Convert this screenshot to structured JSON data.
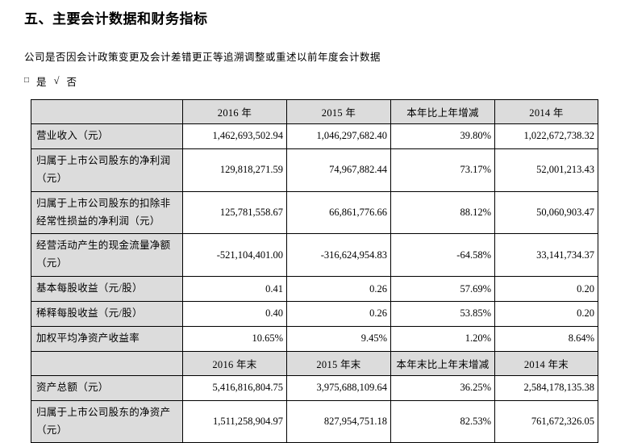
{
  "page": {
    "title": "五、主要会计数据和财务指标",
    "question": "公司是否因会计政策变更及会计差错更正等追溯调整或重述以前年度会计数据",
    "options": {
      "box": "□",
      "yes": "是",
      "check": "√",
      "no": "否"
    }
  },
  "table": {
    "colors": {
      "header_bg": "#dcdcdc",
      "border": "#000000"
    },
    "header1": [
      "",
      "2016 年",
      "2015 年",
      "本年比上年增减",
      "2014 年"
    ],
    "rows1": [
      {
        "label": "营业收入（元）",
        "values": [
          "1,462,693,502.94",
          "1,046,297,682.40",
          "39.80%",
          "1,022,672,738.32"
        ]
      },
      {
        "label": "归属于上市公司股东的净利润（元）",
        "values": [
          "129,818,271.59",
          "74,967,882.44",
          "73.17%",
          "52,001,213.43"
        ]
      },
      {
        "label": "归属于上市公司股东的扣除非经常性损益的净利润（元）",
        "values": [
          "125,781,558.67",
          "66,861,776.66",
          "88.12%",
          "50,060,903.47"
        ]
      },
      {
        "label": "经营活动产生的现金流量净额（元）",
        "values": [
          "-521,104,401.00",
          "-316,624,954.83",
          "-64.58%",
          "33,141,734.37"
        ]
      },
      {
        "label": "基本每股收益（元/股）",
        "values": [
          "0.41",
          "0.26",
          "57.69%",
          "0.20"
        ]
      },
      {
        "label": "稀释每股收益（元/股）",
        "values": [
          "0.40",
          "0.26",
          "53.85%",
          "0.20"
        ]
      },
      {
        "label": "加权平均净资产收益率",
        "values": [
          "10.65%",
          "9.45%",
          "1.20%",
          "8.64%"
        ]
      }
    ],
    "header2": [
      "",
      "2016 年末",
      "2015 年末",
      "本年末比上年末增减",
      "2014 年末"
    ],
    "rows2": [
      {
        "label": "资产总额（元）",
        "values": [
          "5,416,816,804.75",
          "3,975,688,109.64",
          "36.25%",
          "2,584,178,135.38"
        ]
      },
      {
        "label": "归属于上市公司股东的净资产（元）",
        "values": [
          "1,511,258,904.97",
          "827,954,751.18",
          "82.53%",
          "761,672,326.05"
        ]
      }
    ]
  }
}
